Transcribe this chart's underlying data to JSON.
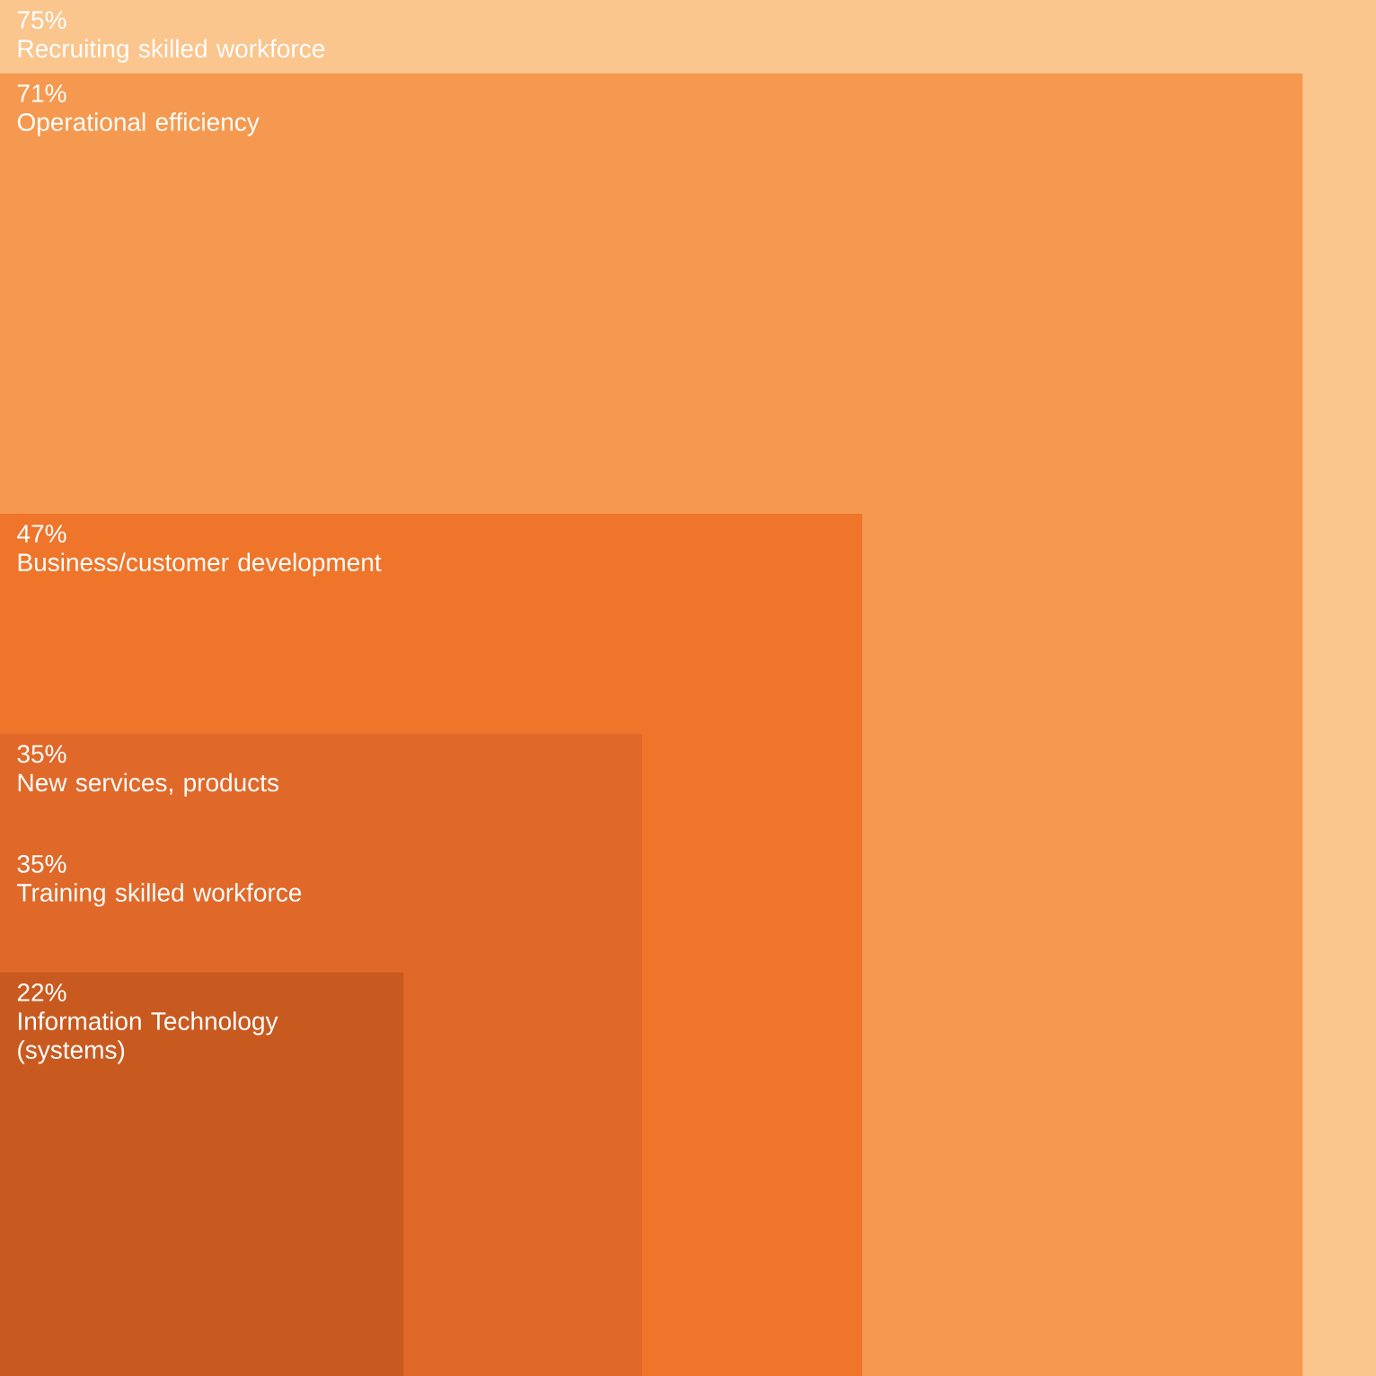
{
  "chart_data": {
    "type": "other",
    "categories": [
      "Recruiting skilled workforce",
      "Operational efficiency",
      "Business/customer development",
      "New services, products",
      "Training skilled workforce",
      "Information Technology (systems)"
    ],
    "values": [
      75,
      71,
      47,
      35,
      35,
      22
    ],
    "value_labels": [
      "75%",
      "71%",
      "47%",
      "35%",
      "35%",
      "22%"
    ],
    "colors": [
      "#fbc58e",
      "#f4994f",
      "#ef752b",
      "#e0692a",
      "#e0692a",
      "#c85a20"
    ]
  }
}
